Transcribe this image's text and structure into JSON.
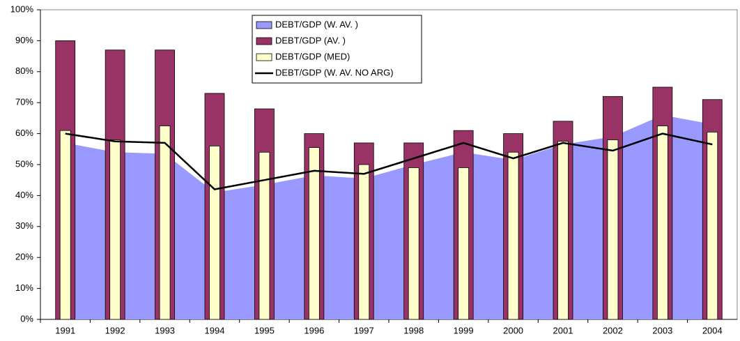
{
  "chart_data": {
    "type": "bar",
    "categories": [
      "1991",
      "1992",
      "1993",
      "1994",
      "1995",
      "1996",
      "1997",
      "1998",
      "1999",
      "2000",
      "2001",
      "2002",
      "2003",
      "2004"
    ],
    "series": [
      {
        "name": "DEBT/GDP (W. AV. )",
        "type": "area",
        "color": "#9999ff",
        "values": [
          57,
          54,
          53.5,
          41,
          43.5,
          46.5,
          45.5,
          50,
          54,
          51.5,
          56.5,
          59,
          66,
          63
        ]
      },
      {
        "name": "DEBT/GDP (AV. )",
        "type": "bar",
        "color": "#993366",
        "values": [
          90,
          87,
          87,
          73,
          68,
          60,
          57,
          57,
          61,
          60,
          64,
          72,
          75,
          71
        ]
      },
      {
        "name": "DEBT/GDP (MED)",
        "type": "bar",
        "color": "#ffffcc",
        "values": [
          61,
          58,
          62.5,
          56,
          54,
          55.5,
          50,
          49,
          49,
          54,
          57.5,
          58,
          62.5,
          60.5
        ]
      },
      {
        "name": "DEBT/GDP (W. AV. NO ARG)",
        "type": "line",
        "color": "#000000",
        "values": [
          60,
          57.5,
          57,
          42,
          45,
          48,
          47,
          52,
          57,
          52,
          57,
          54.5,
          60,
          56.5
        ]
      }
    ],
    "ylim": [
      0,
      100
    ],
    "yticks": [
      {
        "value": 0,
        "label": "0%"
      },
      {
        "value": 10,
        "label": "10%"
      },
      {
        "value": 20,
        "label": "20%"
      },
      {
        "value": 30,
        "label": "30%"
      },
      {
        "value": 40,
        "label": "40%"
      },
      {
        "value": 50,
        "label": "50%"
      },
      {
        "value": 60,
        "label": "60%"
      },
      {
        "value": 70,
        "label": "70%"
      },
      {
        "value": 80,
        "label": "80%"
      },
      {
        "value": 90,
        "label": "90%"
      },
      {
        "value": 100,
        "label": "100%"
      }
    ],
    "legend": "top"
  }
}
